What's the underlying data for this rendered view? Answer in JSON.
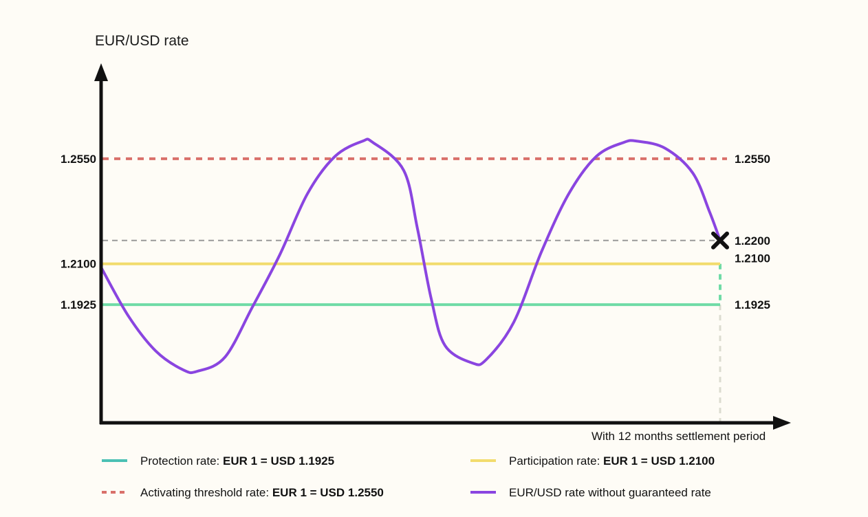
{
  "chart_data": {
    "type": "line",
    "ylabel": "EUR/USD rate",
    "xlabel": "With 12 months settlement period",
    "ylim": [
      1.1425,
      1.29
    ],
    "grid": false,
    "legend_placement": "bottom",
    "reference_lines": [
      {
        "name": "protection",
        "value": 1.1925,
        "label": "1.1925",
        "style": "solid",
        "color": "#6fdba6"
      },
      {
        "name": "participation",
        "value": 1.21,
        "label": "1.2100",
        "style": "solid",
        "color": "#f2dc6d"
      },
      {
        "name": "threshold",
        "value": 1.255,
        "label": "1.2550",
        "style": "dashed",
        "color": "#d9706a"
      },
      {
        "name": "final",
        "value": 1.22,
        "label": "1.2200",
        "style": "dashed",
        "color": "#999999"
      }
    ],
    "series": [
      {
        "color": "#8a45e0",
        "x": [
          0.0,
          0.0444,
          0.0889,
          0.1333,
          0.1556,
          0.2,
          0.2444,
          0.2889,
          0.3333,
          0.3778,
          0.4222,
          0.4389,
          0.4889,
          0.5111,
          0.5333,
          0.5556,
          0.6,
          0.6222,
          0.6667,
          0.7111,
          0.7556,
          0.8,
          0.8444,
          0.8667,
          0.9111,
          0.9556,
          0.9833,
          1.0
        ],
        "y": [
          1.2085,
          1.1875,
          1.1725,
          1.1645,
          1.164,
          1.17,
          1.1915,
          1.214,
          1.24,
          1.256,
          1.2625,
          1.262,
          1.25,
          1.225,
          1.195,
          1.175,
          1.1675,
          1.169,
          1.185,
          1.215,
          1.24,
          1.256,
          1.262,
          1.2625,
          1.2595,
          1.249,
          1.232,
          1.22
        ]
      }
    ],
    "final_marker": {
      "y": 1.22
    }
  },
  "legend": [
    {
      "id": "protection",
      "style": "solid",
      "color": "#4bc0b4",
      "prefix": "Protection rate: ",
      "bold": "EUR 1 = USD 1.1925"
    },
    {
      "id": "participation",
      "style": "solid",
      "color": "#f2dc6d",
      "prefix": "Participation rate: ",
      "bold": "EUR 1 = USD 1.2100"
    },
    {
      "id": "threshold",
      "style": "dashed",
      "color": "#d9706a",
      "prefix": "Activating threshold rate: ",
      "bold": "EUR 1 = USD 1.2550"
    },
    {
      "id": "market-rate",
      "style": "solid",
      "color": "#8a45e0",
      "prefix": "EUR/USD rate without guaranteed rate",
      "bold": ""
    }
  ]
}
